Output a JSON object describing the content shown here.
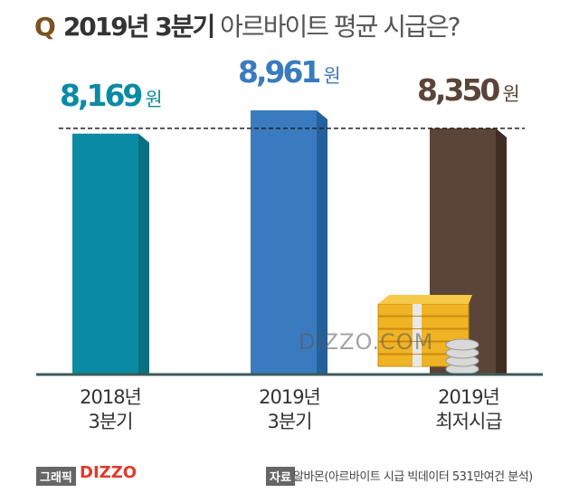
{
  "header": {
    "q": "Q",
    "title_bold": "2019년 3분기",
    "title_rest": "아르바이트 평균 시급은?"
  },
  "chart_data": {
    "type": "bar",
    "categories": [
      [
        "2018년",
        "3분기"
      ],
      [
        "2019년",
        "3분기"
      ],
      [
        "2019년",
        "최저시급"
      ]
    ],
    "values": [
      8169,
      8961,
      8350
    ],
    "value_labels": [
      "8,169",
      "8,961",
      "8,350"
    ],
    "unit": "원",
    "colors": [
      "#0b8aa3",
      "#3a7bbf",
      "#5b4538"
    ],
    "side_colors": [
      "#0a6f80",
      "#24609c",
      "#3f2d22"
    ],
    "reference_line": {
      "value": 8350,
      "style": "dashed"
    },
    "ylim": [
      0,
      8961
    ],
    "grid": false
  },
  "watermark": "DIZZO.COM",
  "footer": {
    "graphic_tag": "그래픽",
    "logo": "DIZZO",
    "source_tag": "자료",
    "source": "알바몬(아르바이트 시급 빅데이터 531만여건 분석)"
  }
}
